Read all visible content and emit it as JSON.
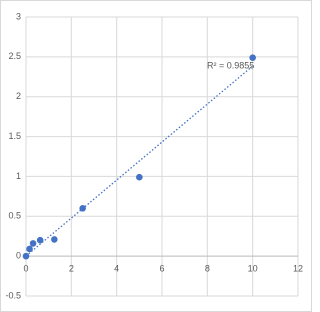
{
  "chart_data": {
    "type": "scatter",
    "x": [
      0,
      0.156,
      0.3125,
      0.625,
      1.25,
      2.5,
      5,
      10
    ],
    "series": [
      {
        "color": "#4472c4",
        "values": [
          0,
          0.09,
          0.16,
          0.2,
          0.21,
          0.6,
          0.99,
          2.49
        ]
      }
    ],
    "xlim": [
      0,
      12
    ],
    "xticks": [
      0,
      2,
      4,
      6,
      8,
      10,
      12
    ],
    "ylim": [
      -0.5,
      3
    ],
    "yticks": [
      -0.5,
      0,
      0.5,
      1,
      1.5,
      2,
      2.5,
      3
    ],
    "grid": true,
    "trendline": "linear",
    "annotation": "R² = 0.9855"
  }
}
